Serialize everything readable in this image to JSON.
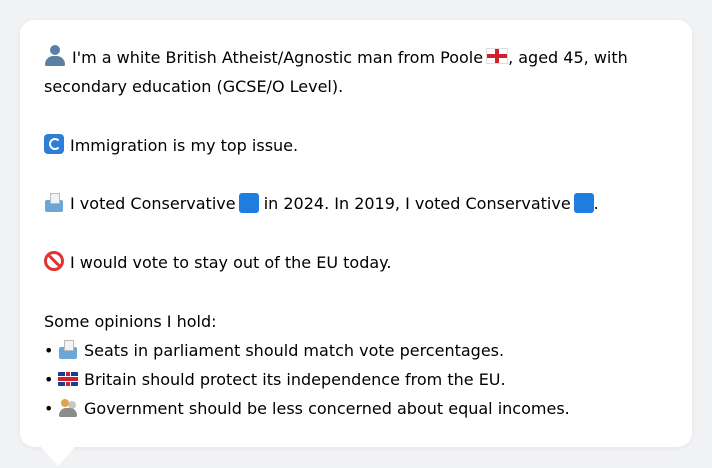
{
  "profile": {
    "line1_text": "I'm a white British Atheist/Agnostic man from Poole",
    "line1_after": ", aged 45, with",
    "line2_text": "secondary education (GCSE/O Level).",
    "top_issue": "Immigration is my top issue.",
    "vote_part1": "I voted Conservative",
    "vote_part2": "in 2024. In 2019, I voted Conservative",
    "vote_end": ".",
    "eu": "I would vote to stay out of the EU today.",
    "opinions_heading": "Some opinions I hold:",
    "opinions": [
      "Seats in parliament should match vote percentages.",
      "Britain should protect its independence from the EU.",
      "Government should be less concerned about equal incomes."
    ],
    "bullet": "•"
  },
  "colors": {
    "card_background": "#ffffff",
    "page_background": "#f1f2f4",
    "conservative_blue": "#1f7de0",
    "text": "#1f2328"
  },
  "icons": [
    "bust-in-silhouette-icon",
    "england-flag-icon",
    "passport-control-icon",
    "ballot-box-icon",
    "blue-square-icon",
    "prohibited-icon",
    "uk-flag-icon",
    "crowd-icon"
  ]
}
